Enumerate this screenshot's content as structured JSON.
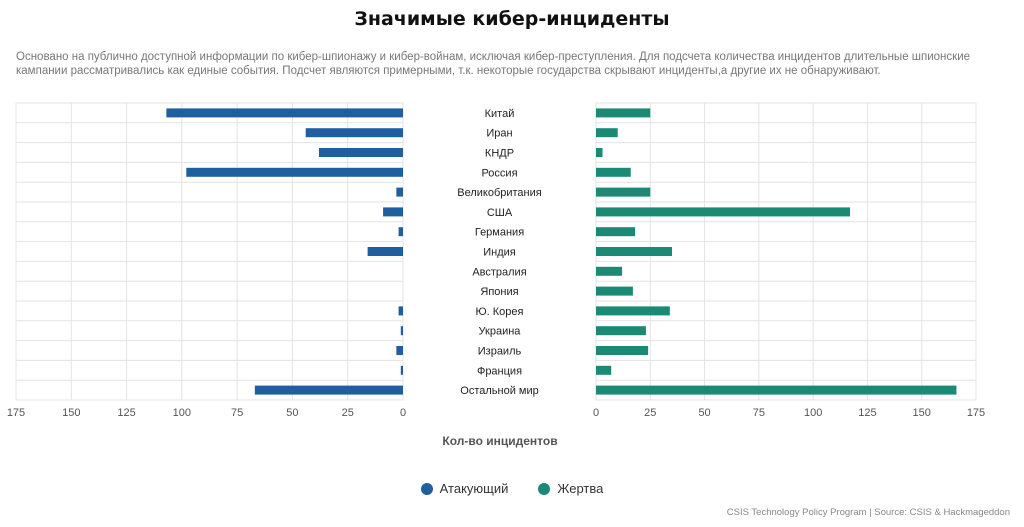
{
  "title": "Значимые кибер-инциденты",
  "subtitle": "Основано на публично доступной информации по кибер-шпионажу и кибер-войнам, исключая кибер-преступления. Для подсчета количества инцидентов длительные шпионские кампании рассматривались как единые события. Подсчет являются примерными, т.к. некоторые государства скрывают инциденты,а другие их не обнаруживают.",
  "source": "CSIS Technology Policy Program | Source: CSIS & Hackmageddon",
  "colors": {
    "attacker": "#1f5fa0",
    "victim": "#1a8a74",
    "grid": "#e3e3e3"
  },
  "chart_data": {
    "type": "bar",
    "orientation": "horizontal",
    "layout": "mirrored",
    "title": "Значимые кибер-инциденты",
    "xlabel": "Кол-во инцидентов",
    "xlim": [
      0,
      175
    ],
    "xticks": [
      0,
      25,
      50,
      75,
      100,
      125,
      150,
      175
    ],
    "categories": [
      "Китай",
      "Иран",
      "КНДР",
      "Россия",
      "Великобритания",
      "США",
      "Германия",
      "Индия",
      "Австралия",
      "Япония",
      "Ю. Корея",
      "Украина",
      "Израиль",
      "Франция",
      "Остальной мир"
    ],
    "series": [
      {
        "name": "Атакующий",
        "side": "left",
        "values": [
          107,
          44,
          38,
          98,
          3,
          9,
          2,
          16,
          0,
          0,
          2,
          1,
          3,
          1,
          67
        ]
      },
      {
        "name": "Жертва",
        "side": "right",
        "values": [
          25,
          10,
          3,
          16,
          25,
          117,
          18,
          35,
          12,
          17,
          34,
          23,
          24,
          7,
          166
        ]
      }
    ],
    "legend_position": "bottom-center",
    "grid": true
  }
}
